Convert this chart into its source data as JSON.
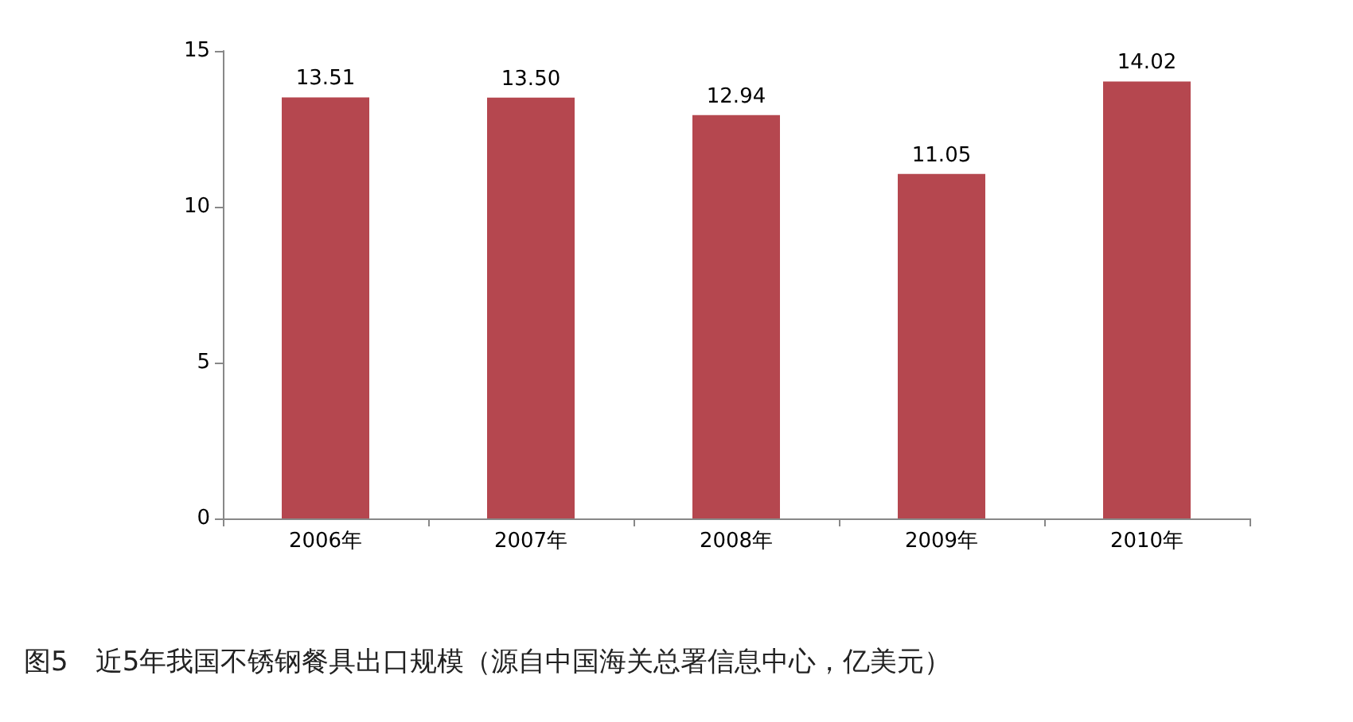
{
  "chart_data": {
    "type": "bar",
    "title": "图5　近5年我国不锈钢餐具出口规模（源自中国海关总署信息中心，亿美元）",
    "categories": [
      "2006年",
      "2007年",
      "2008年",
      "2009年",
      "2010年"
    ],
    "values": [
      13.51,
      13.5,
      12.94,
      11.05,
      14.02
    ],
    "value_labels": [
      "13.51",
      "13.50",
      "12.94",
      "11.05",
      "14.02"
    ],
    "color": "#b5474f",
    "ylim": [
      0,
      15
    ],
    "yticks": [
      0,
      5,
      10,
      15
    ],
    "grid": false
  }
}
